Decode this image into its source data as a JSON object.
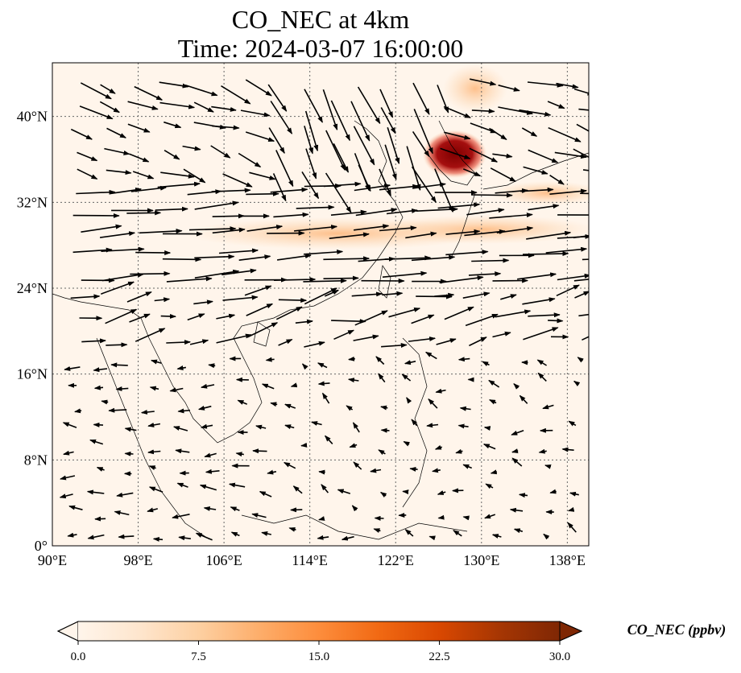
{
  "title": {
    "line1": "CO_NEC at 4km",
    "line2": "Time: 2024-03-07 16:00:00"
  },
  "map": {
    "extent": {
      "lon_min": 90,
      "lon_max": 140,
      "lat_min": 0,
      "lat_max": 45
    },
    "lon_ticks": [
      {
        "value": 90,
        "label": "90°E"
      },
      {
        "value": 98,
        "label": "98°E"
      },
      {
        "value": 106,
        "label": "106°E"
      },
      {
        "value": 114,
        "label": "114°E"
      },
      {
        "value": 122,
        "label": "122°E"
      },
      {
        "value": 130,
        "label": "130°E"
      },
      {
        "value": 138,
        "label": "138°E"
      }
    ],
    "lat_ticks": [
      {
        "value": 0,
        "label": "0°"
      },
      {
        "value": 8,
        "label": "8°N"
      },
      {
        "value": 16,
        "label": "16°N"
      },
      {
        "value": 24,
        "label": "24°N"
      },
      {
        "value": 32,
        "label": "32°N"
      },
      {
        "value": 40,
        "label": "40°N"
      }
    ],
    "gridlines": true,
    "background_color": "#fff5eb",
    "high_concentration_region": {
      "lon": 127.5,
      "lat": 36.5,
      "value": 30
    }
  },
  "colorbar": {
    "title": "CO_NEC (ppbv)",
    "min": 0,
    "max": 30,
    "ticks": [
      {
        "value": 0,
        "label": "0.0"
      },
      {
        "value": 7.5,
        "label": "7.5"
      },
      {
        "value": 15,
        "label": "15.0"
      },
      {
        "value": 22.5,
        "label": "22.5"
      },
      {
        "value": 30,
        "label": "30.0"
      }
    ],
    "colors": [
      "#fff5eb",
      "#fee6ce",
      "#fdd0a2",
      "#fdae6b",
      "#fd8d3c",
      "#f16913",
      "#d94801",
      "#a63603",
      "#7f2704"
    ],
    "extend": "both"
  },
  "wind": {
    "note_regions": [
      {
        "lon_min": 90,
        "lon_max": 140,
        "lat_min": 24,
        "lat_max": 34,
        "direction": "east"
      },
      {
        "lon_min": 110,
        "lon_max": 126,
        "lat_min": 34,
        "lat_max": 45,
        "direction": "south-southeast"
      },
      {
        "lon_min": 90,
        "lon_max": 112,
        "lat_min": 0,
        "lat_max": 22,
        "direction": "west-southwest"
      }
    ]
  }
}
